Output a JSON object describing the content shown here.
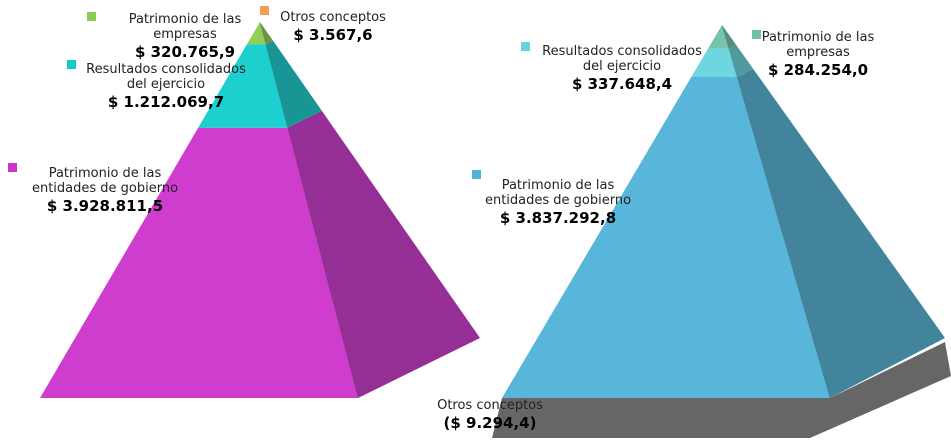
{
  "chart_data": [
    {
      "type": "pyramid",
      "categories": [
        "Patrimonio de las entidades de gobierno",
        "Resultados consolidados del ejercicio",
        "Patrimonio de las empresas",
        "Otros conceptos"
      ],
      "values": [
        3928811.5,
        1212069.7,
        320765.9,
        3567.6
      ],
      "value_labels": [
        "$ 3.928.811,5",
        "$ 1.212.069,7",
        "$ 320.765,9",
        "$ 3.567,6"
      ],
      "colors": [
        "#cc33cc",
        "#11cccc",
        "#8ccc50",
        "#f0a050"
      ]
    },
    {
      "type": "pyramid",
      "categories": [
        "Patrimonio de las entidades de gobierno",
        "Resultados consolidados del ejercicio",
        "Patrimonio de las empresas",
        "Otros conceptos"
      ],
      "values": [
        3837292.8,
        337648.4,
        284254.0,
        -9294.4
      ],
      "value_labels": [
        "$ 3.837.292,8",
        "$ 337.648,4",
        "$ 284.254,0",
        "($ 9.294,4)"
      ],
      "colors": [
        "#4fb2d8",
        "#66d4dc",
        "#70c0a8",
        "#666666"
      ]
    }
  ]
}
